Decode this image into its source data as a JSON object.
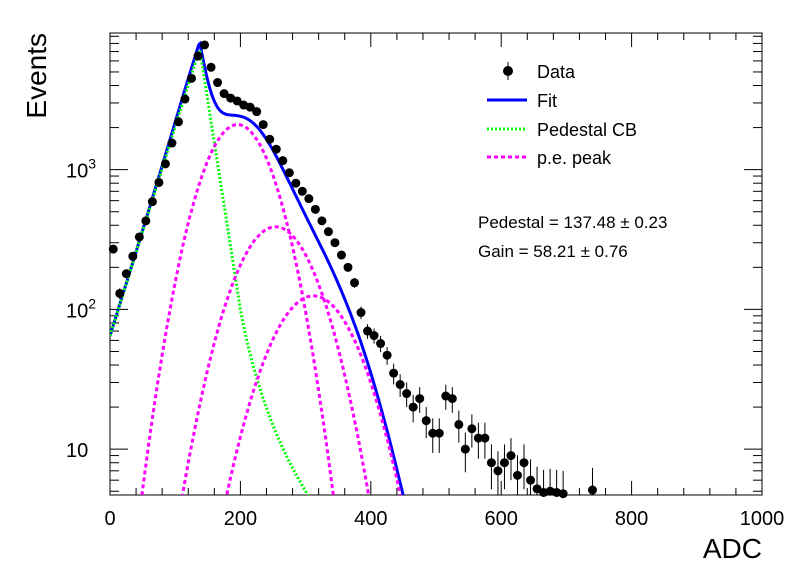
{
  "chart_data": {
    "type": "scatter",
    "xlabel": "ADC",
    "ylabel": "Events",
    "xlim": [
      0,
      1000
    ],
    "ylim": [
      4.7,
      9500
    ],
    "yscale": "log",
    "grid": false,
    "legend_position": "top-right",
    "x_ticks": [
      "0",
      "200",
      "400",
      "600",
      "800",
      "1000"
    ],
    "y_ticks": [
      {
        "value": 10,
        "base": "10",
        "exp": ""
      },
      {
        "value": 100,
        "base": "10",
        "exp": "2"
      },
      {
        "value": 1000,
        "base": "10",
        "exp": "3"
      }
    ],
    "legend": [
      {
        "label": "Data",
        "style": "marker",
        "color": "#000000"
      },
      {
        "label": "Fit",
        "style": "solid",
        "color": "#0000ff"
      },
      {
        "label": "Pedestal CB",
        "style": "dotted",
        "color": "#00ff00"
      },
      {
        "label": "p.e. peak",
        "style": "dashed",
        "color": "#ff00ff"
      }
    ],
    "annotations": [
      {
        "text": "Pedestal = 137.48",
        "pm": "±",
        "err": "0.23"
      },
      {
        "text": "Gain = 58.21",
        "pm": "±",
        "err": "0.76"
      }
    ],
    "series": [
      {
        "name": "Data",
        "kind": "points",
        "color": "#000000",
        "points": [
          [
            5,
            270
          ],
          [
            15,
            130
          ],
          [
            25,
            180
          ],
          [
            35,
            240
          ],
          [
            45,
            330
          ],
          [
            55,
            430
          ],
          [
            65,
            590
          ],
          [
            75,
            810
          ],
          [
            85,
            1100
          ],
          [
            95,
            1550
          ],
          [
            105,
            2200
          ],
          [
            115,
            3200
          ],
          [
            125,
            4500
          ],
          [
            135,
            6500
          ],
          [
            145,
            7800
          ],
          [
            155,
            5400
          ],
          [
            165,
            4200
          ],
          [
            175,
            3500
          ],
          [
            185,
            3250
          ],
          [
            195,
            3100
          ],
          [
            205,
            2900
          ],
          [
            215,
            2800
          ],
          [
            225,
            2600
          ],
          [
            235,
            2100
          ],
          [
            245,
            1650
          ],
          [
            255,
            1400
          ],
          [
            265,
            1160
          ],
          [
            275,
            950
          ],
          [
            285,
            800
          ],
          [
            295,
            700
          ],
          [
            305,
            620
          ],
          [
            315,
            520
          ],
          [
            325,
            430
          ],
          [
            335,
            360
          ],
          [
            345,
            300
          ],
          [
            355,
            245
          ],
          [
            365,
            200
          ],
          [
            375,
            155
          ],
          [
            385,
            95
          ],
          [
            395,
            70
          ],
          [
            405,
            65
          ],
          [
            415,
            57
          ],
          [
            425,
            47
          ],
          [
            435,
            35
          ],
          [
            445,
            29
          ],
          [
            455,
            25
          ],
          [
            465,
            20
          ],
          [
            475,
            23
          ],
          [
            485,
            16
          ],
          [
            495,
            13
          ],
          [
            505,
            13
          ],
          [
            515,
            24
          ],
          [
            525,
            23
          ],
          [
            535,
            15
          ],
          [
            545,
            10
          ],
          [
            555,
            14
          ],
          [
            565,
            12
          ],
          [
            575,
            12
          ],
          [
            585,
            8
          ],
          [
            595,
            7
          ],
          [
            605,
            8
          ],
          [
            615,
            9
          ],
          [
            625,
            6.5
          ],
          [
            635,
            8
          ],
          [
            645,
            6
          ],
          [
            655,
            5.2
          ],
          [
            665,
            4.9
          ],
          [
            675,
            5.0
          ],
          [
            685,
            4.9
          ],
          [
            695,
            4.8
          ],
          [
            740,
            5.1
          ]
        ]
      },
      {
        "name": "Fit",
        "kind": "line",
        "style": "solid",
        "color": "#0000ff",
        "model": "total"
      },
      {
        "name": "Pedestal CB",
        "kind": "line",
        "style": "dotted",
        "color": "#00ff00",
        "model": "cb"
      },
      {
        "name": "p.e. peak",
        "kind": "line",
        "style": "dashed",
        "color": "#ff00ff",
        "model": "pe",
        "peaks": [
          1,
          2,
          3
        ]
      }
    ]
  }
}
